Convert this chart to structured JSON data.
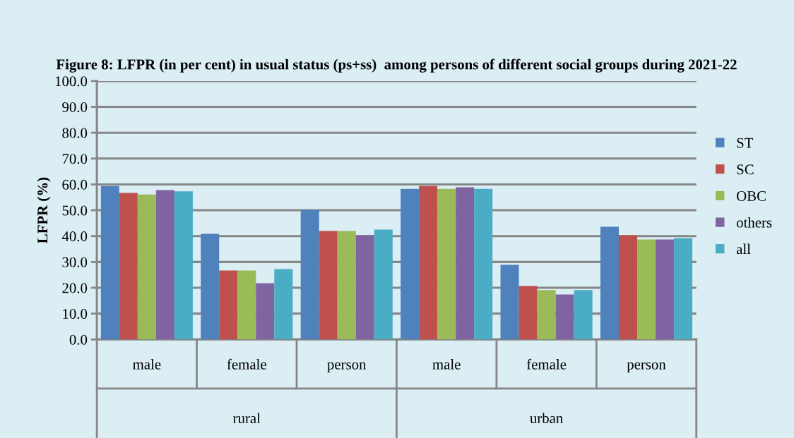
{
  "chart_data": {
    "type": "bar",
    "title": "Figure 8: LFPR (in per cent) in usual status (ps+ss)  among persons of different social groups during 2021-22",
    "ylabel": "LFPR (%)",
    "categories": [
      "male",
      "female",
      "person",
      "male",
      "female",
      "person"
    ],
    "annotations": [
      "rural",
      "urban"
    ],
    "series": [
      {
        "name": "ST",
        "color": "#4f81bd",
        "values": [
          59.4,
          40.9,
          50.1,
          58.3,
          28.9,
          43.6
        ]
      },
      {
        "name": "SC",
        "color": "#c0504d",
        "values": [
          56.7,
          26.7,
          42.0,
          59.4,
          20.7,
          40.3
        ]
      },
      {
        "name": "OBC",
        "color": "#9bbb59",
        "values": [
          56.1,
          26.7,
          42.0,
          58.3,
          19.1,
          38.7
        ]
      },
      {
        "name": "others",
        "color": "#8064a2",
        "values": [
          57.8,
          21.8,
          40.3,
          58.9,
          17.4,
          38.7
        ]
      },
      {
        "name": "all",
        "color": "#4bacc6",
        "values": [
          57.3,
          27.2,
          42.5,
          58.3,
          19.1,
          39.2
        ]
      }
    ],
    "ylim": [
      0,
      100
    ],
    "yticks": [
      {
        "value": 0,
        "label": "0.0"
      },
      {
        "value": 10,
        "label": "10.0"
      },
      {
        "value": 20,
        "label": "20.0"
      },
      {
        "value": 30,
        "label": "30.0"
      },
      {
        "value": 40,
        "label": "40.0"
      },
      {
        "value": 50,
        "label": "50.0"
      },
      {
        "value": 60,
        "label": "60.0"
      },
      {
        "value": 70,
        "label": "70.0"
      },
      {
        "value": 80,
        "label": "80.0"
      },
      {
        "value": 90,
        "label": "90.0"
      },
      {
        "value": 100,
        "label": "100.0"
      }
    ],
    "grid": "y",
    "legend": "right"
  }
}
